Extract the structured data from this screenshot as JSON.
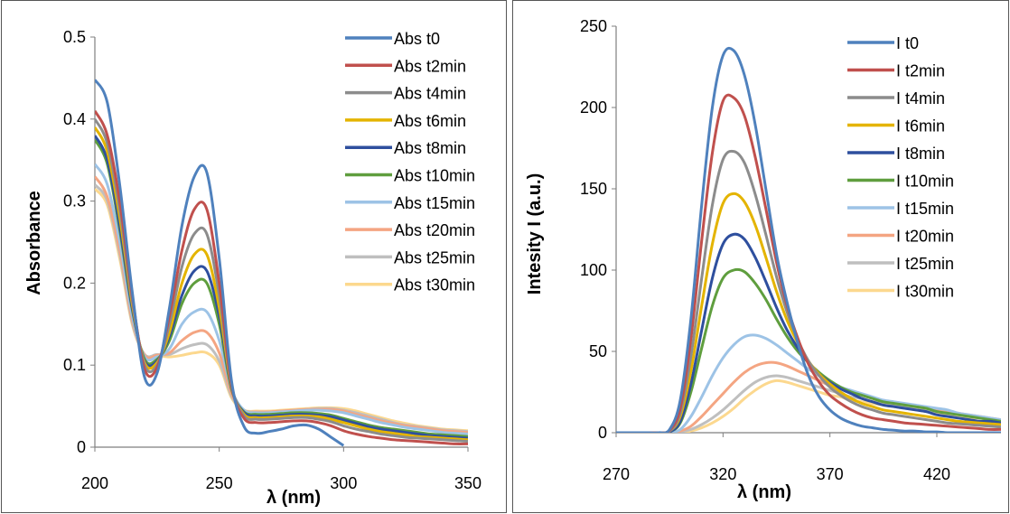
{
  "chart_data": [
    {
      "type": "line",
      "xlabel": "λ (nm)",
      "ylabel": "Absorbance",
      "xlim": [
        200,
        350
      ],
      "ylim": [
        0,
        0.5
      ],
      "xticks": [
        "200",
        "250",
        "300",
        "350"
      ],
      "yticks": [
        "0",
        "0.1",
        "0.2",
        "0.3",
        "0.4",
        "0.5"
      ],
      "grid": false,
      "legend_position": "top-right",
      "x": [
        200,
        205,
        210,
        215,
        220,
        225,
        230,
        235,
        240,
        245,
        250,
        255,
        260,
        265,
        270,
        275,
        280,
        285,
        290,
        295,
        300,
        305,
        310,
        315,
        320,
        325,
        330,
        335,
        340,
        345,
        350
      ],
      "series": [
        {
          "name": "Abs t0",
          "color": "#4f81bd",
          "values": [
            0.448,
            0.42,
            0.32,
            0.19,
            0.085,
            0.09,
            0.17,
            0.27,
            0.33,
            0.335,
            0.23,
            0.08,
            0.025,
            0.017,
            0.019,
            0.022,
            0.026,
            0.027,
            0.022,
            0.012,
            0.002,
            null,
            null,
            null,
            null,
            null,
            null,
            null,
            null,
            null,
            null
          ]
        },
        {
          "name": "Abs t2min",
          "color": "#c0504d",
          "values": [
            0.41,
            0.38,
            0.3,
            0.185,
            0.095,
            0.097,
            0.16,
            0.24,
            0.29,
            0.29,
            0.2,
            0.075,
            0.035,
            0.03,
            0.03,
            0.031,
            0.032,
            0.032,
            0.03,
            0.026,
            0.02,
            0.016,
            0.013,
            0.011,
            0.009,
            0.008,
            0.007,
            0.006,
            0.005,
            0.004,
            0.004
          ]
        },
        {
          "name": "Abs t4min",
          "color": "#8c8c8c",
          "values": [
            0.4,
            0.37,
            0.29,
            0.18,
            0.1,
            0.1,
            0.15,
            0.22,
            0.26,
            0.26,
            0.185,
            0.075,
            0.038,
            0.034,
            0.034,
            0.035,
            0.036,
            0.036,
            0.034,
            0.031,
            0.026,
            0.022,
            0.019,
            0.016,
            0.014,
            0.012,
            0.011,
            0.01,
            0.009,
            0.008,
            0.007
          ]
        },
        {
          "name": "Abs t6min",
          "color": "#e4b400",
          "values": [
            0.39,
            0.36,
            0.28,
            0.175,
            0.103,
            0.103,
            0.14,
            0.2,
            0.235,
            0.235,
            0.17,
            0.073,
            0.04,
            0.036,
            0.036,
            0.037,
            0.038,
            0.038,
            0.037,
            0.034,
            0.03,
            0.026,
            0.022,
            0.019,
            0.017,
            0.015,
            0.013,
            0.012,
            0.011,
            0.01,
            0.009
          ]
        },
        {
          "name": "Abs t8min",
          "color": "#2e4f9e",
          "values": [
            0.38,
            0.35,
            0.27,
            0.17,
            0.105,
            0.105,
            0.135,
            0.185,
            0.215,
            0.215,
            0.16,
            0.072,
            0.042,
            0.038,
            0.038,
            0.039,
            0.04,
            0.04,
            0.039,
            0.037,
            0.033,
            0.029,
            0.025,
            0.022,
            0.02,
            0.018,
            0.016,
            0.014,
            0.013,
            0.012,
            0.011
          ]
        },
        {
          "name": "Abs t10min",
          "color": "#5f9e3e",
          "values": [
            0.375,
            0.345,
            0.265,
            0.168,
            0.107,
            0.107,
            0.13,
            0.175,
            0.2,
            0.2,
            0.15,
            0.07,
            0.043,
            0.04,
            0.04,
            0.041,
            0.042,
            0.042,
            0.041,
            0.039,
            0.035,
            0.031,
            0.027,
            0.024,
            0.022,
            0.02,
            0.018,
            0.016,
            0.015,
            0.014,
            0.013
          ]
        },
        {
          "name": "Abs t15min",
          "color": "#9dc3e6",
          "values": [
            0.345,
            0.32,
            0.25,
            0.16,
            0.11,
            0.11,
            0.12,
            0.15,
            0.165,
            0.165,
            0.13,
            0.07,
            0.045,
            0.042,
            0.042,
            0.043,
            0.044,
            0.045,
            0.045,
            0.044,
            0.042,
            0.038,
            0.034,
            0.03,
            0.027,
            0.024,
            0.022,
            0.02,
            0.018,
            0.017,
            0.016
          ]
        },
        {
          "name": "Abs t20min",
          "color": "#f4a582",
          "values": [
            0.33,
            0.305,
            0.24,
            0.155,
            0.112,
            0.112,
            0.115,
            0.13,
            0.14,
            0.14,
            0.115,
            0.065,
            0.045,
            0.043,
            0.043,
            0.044,
            0.045,
            0.046,
            0.046,
            0.046,
            0.044,
            0.04,
            0.036,
            0.032,
            0.029,
            0.026,
            0.024,
            0.022,
            0.02,
            0.019,
            0.018
          ]
        },
        {
          "name": "Abs t25min",
          "color": "#bfbfbf",
          "values": [
            0.32,
            0.3,
            0.235,
            0.152,
            0.113,
            0.113,
            0.113,
            0.12,
            0.125,
            0.125,
            0.105,
            0.062,
            0.045,
            0.043,
            0.043,
            0.044,
            0.045,
            0.046,
            0.047,
            0.047,
            0.045,
            0.042,
            0.038,
            0.034,
            0.03,
            0.027,
            0.025,
            0.023,
            0.021,
            0.02,
            0.019
          ]
        },
        {
          "name": "Abs t30min",
          "color": "#fcd88e",
          "values": [
            0.315,
            0.295,
            0.23,
            0.15,
            0.113,
            0.112,
            0.11,
            0.112,
            0.115,
            0.115,
            0.1,
            0.06,
            0.045,
            0.044,
            0.044,
            0.045,
            0.046,
            0.047,
            0.048,
            0.048,
            0.047,
            0.044,
            0.04,
            0.036,
            0.032,
            0.029,
            0.026,
            0.024,
            0.022,
            0.021,
            0.02
          ]
        }
      ]
    },
    {
      "type": "line",
      "xlabel": "λ (nm)",
      "ylabel": "Intesity I (a.u.)",
      "xlim": [
        270,
        450
      ],
      "ylim": [
        0,
        250
      ],
      "xticks": [
        "270",
        "320",
        "370",
        "420"
      ],
      "xtick_values": [
        270,
        320,
        370,
        420
      ],
      "yticks": [
        "0",
        "50",
        "100",
        "150",
        "200",
        "250"
      ],
      "grid": false,
      "legend_position": "top-right",
      "x": [
        270,
        280,
        285,
        290,
        295,
        300,
        305,
        310,
        315,
        320,
        325,
        330,
        335,
        340,
        345,
        350,
        355,
        360,
        365,
        370,
        375,
        380,
        385,
        390,
        395,
        400,
        405,
        410,
        415,
        420,
        425,
        430,
        435,
        440,
        445,
        450
      ],
      "series": [
        {
          "name": "I t0",
          "color": "#4f81bd",
          "values": [
            0,
            0,
            0,
            0,
            2,
            20,
            70,
            140,
            200,
            232,
            235,
            220,
            190,
            150,
            110,
            80,
            55,
            35,
            22,
            14,
            9,
            6,
            4,
            3,
            2,
            1.5,
            1,
            1,
            0.5,
            0.5,
            0,
            0,
            0,
            0,
            0,
            0
          ]
        },
        {
          "name": "I t2min",
          "color": "#c0504d",
          "values": [
            0,
            0,
            0,
            0,
            1.5,
            15,
            58,
            118,
            172,
            204,
            206,
            195,
            170,
            138,
            105,
            78,
            58,
            42,
            31,
            23,
            18,
            14,
            11,
            9,
            8,
            7,
            6,
            5.5,
            5,
            4.5,
            4,
            3.5,
            3,
            2.5,
            2,
            2
          ]
        },
        {
          "name": "I t4min",
          "color": "#8c8c8c",
          "values": [
            0,
            0,
            0,
            0,
            1,
            12,
            47,
            95,
            140,
            168,
            173,
            166,
            147,
            122,
            96,
            74,
            57,
            44,
            35,
            28,
            23,
            19,
            16,
            14,
            12,
            11,
            10,
            9,
            8,
            7,
            6,
            5.5,
            5,
            4.5,
            4,
            3.5
          ]
        },
        {
          "name": "I t6min",
          "color": "#e4b400",
          "values": [
            0,
            0,
            0,
            0,
            1,
            10,
            38,
            78,
            116,
            141,
            147,
            142,
            128,
            108,
            87,
            69,
            55,
            44,
            36,
            30,
            25,
            21,
            18,
            16,
            14,
            13,
            12,
            11,
            10,
            9,
            8,
            7,
            6.5,
            6,
            5.5,
            5
          ]
        },
        {
          "name": "I t8min",
          "color": "#2e4f9e",
          "values": [
            0,
            0,
            0,
            0,
            0.5,
            7,
            30,
            63,
            95,
            116,
            122,
            119,
            108,
            93,
            77,
            63,
            52,
            43,
            36,
            31,
            27,
            24,
            21,
            19,
            17,
            16,
            15,
            14,
            13,
            11,
            10,
            9,
            8,
            7,
            7,
            6
          ]
        },
        {
          "name": "I t10min",
          "color": "#5f9e3e",
          "values": [
            0,
            0,
            0,
            0,
            0.5,
            6,
            25,
            52,
            78,
            95,
            100,
            99,
            92,
            82,
            70,
            59,
            50,
            43,
            37,
            32,
            28,
            25,
            23,
            21,
            19,
            18,
            17,
            16,
            15,
            13,
            12,
            11,
            10,
            9,
            8,
            7
          ]
        },
        {
          "name": "I t15min",
          "color": "#9dc3e6",
          "values": [
            0,
            0,
            0,
            0,
            0,
            2,
            10,
            22,
            35,
            46,
            54,
            59,
            60,
            58,
            54,
            49,
            44,
            39,
            35,
            31,
            28,
            26,
            24,
            22,
            20,
            19,
            18,
            17,
            16,
            15,
            14,
            12,
            11,
            10,
            9,
            8
          ]
        },
        {
          "name": "I t20min",
          "color": "#f4a582",
          "values": [
            0,
            0,
            0,
            0,
            0,
            1,
            4,
            10,
            17,
            24,
            31,
            37,
            41,
            43,
            43,
            41,
            38,
            35,
            32,
            29,
            27,
            25,
            23,
            21,
            19,
            18,
            17,
            16,
            15,
            14,
            13,
            12,
            11,
            10,
            9,
            8
          ]
        },
        {
          "name": "I t25min",
          "color": "#bfbfbf",
          "values": [
            0,
            0,
            0,
            0,
            0,
            0.5,
            2,
            5,
            9,
            14,
            20,
            26,
            31,
            34,
            35,
            34,
            32,
            30,
            28,
            26,
            24,
            22,
            21,
            19,
            18,
            17,
            16,
            15,
            14,
            13,
            12,
            11,
            10,
            9,
            8,
            8
          ]
        },
        {
          "name": "I t30min",
          "color": "#fcd88e",
          "values": [
            0,
            0,
            0,
            0,
            0,
            0,
            1,
            3,
            6,
            10,
            15,
            21,
            26,
            30,
            32,
            31,
            29,
            27,
            25,
            23,
            22,
            20,
            19,
            18,
            17,
            16,
            15,
            14,
            13,
            12,
            11,
            10,
            9,
            9,
            8,
            7
          ]
        }
      ]
    }
  ]
}
